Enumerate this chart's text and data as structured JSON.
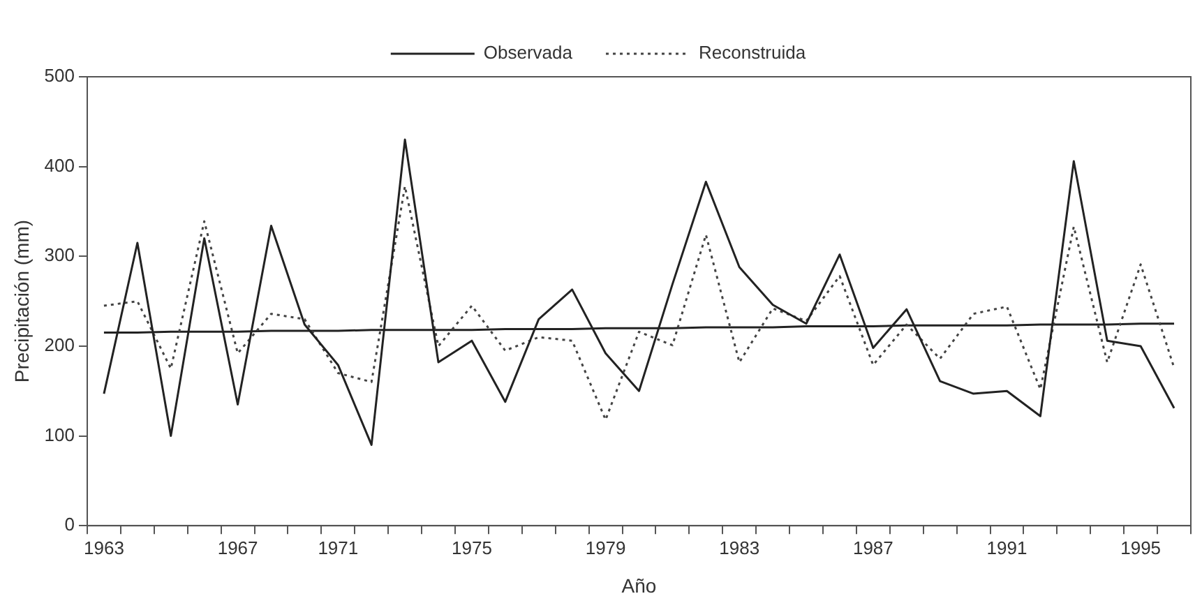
{
  "chart_data": {
    "type": "line",
    "xlabel": "Año",
    "ylabel": "Precipitación (mm)",
    "categories": [
      "1963",
      null,
      null,
      null,
      "1967",
      null,
      null,
      "1971",
      null,
      null,
      null,
      "1975",
      null,
      null,
      null,
      "1979",
      null,
      null,
      null,
      "1983",
      null,
      null,
      null,
      "1987",
      null,
      null,
      null,
      "1991",
      null,
      null,
      null,
      "1995",
      null
    ],
    "series": [
      {
        "name": "Observada",
        "color": "#222222",
        "line_style": "solid",
        "values": [
          147,
          315,
          100,
          320,
          135,
          334,
          224,
          179,
          90,
          430,
          182,
          206,
          138,
          230,
          263,
          192,
          150,
          269,
          383,
          288,
          246,
          225,
          302,
          198,
          241,
          161,
          147,
          150,
          122,
          406,
          206,
          200,
          131
        ]
      },
      {
        "name": "Reconstruida",
        "color": "#444444",
        "line_style": "dotted",
        "values": [
          245,
          250,
          175,
          339,
          192,
          236,
          230,
          170,
          160,
          378,
          200,
          245,
          195,
          210,
          206,
          118,
          216,
          201,
          324,
          182,
          242,
          228,
          278,
          179,
          224,
          186,
          236,
          244,
          152,
          333,
          182,
          291,
          176
        ]
      },
      {
        "type": "line",
        "color": "#222222",
        "line_style": "solid",
        "values": [
          215,
          215,
          216,
          216,
          216,
          217,
          217,
          217,
          218,
          218,
          218,
          218,
          219,
          219,
          219,
          220,
          220,
          220,
          221,
          221,
          221,
          222,
          222,
          222,
          223,
          223,
          223,
          223,
          224,
          224,
          224,
          225,
          225
        ]
      }
    ],
    "ylim": [
      0,
      500
    ],
    "yticks": [
      0,
      100,
      200,
      300,
      400,
      500
    ],
    "grid": false,
    "legend": "top",
    "marker": "none"
  }
}
